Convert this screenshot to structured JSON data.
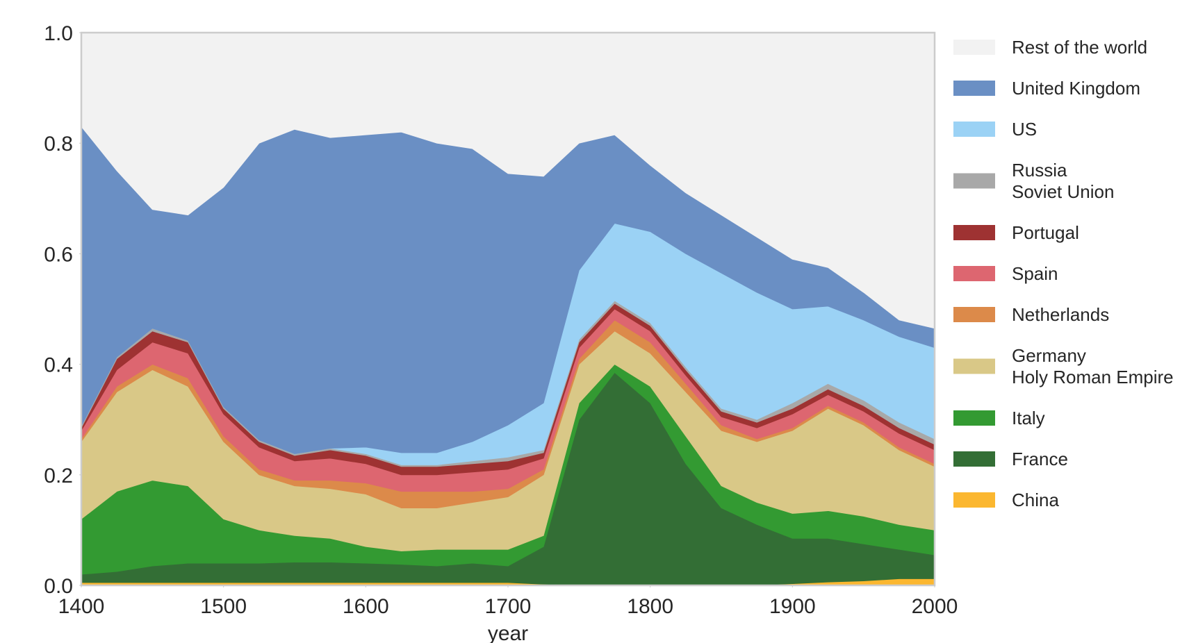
{
  "chart_data": {
    "type": "stackedarea",
    "x_label": "year",
    "x": [
      1400,
      1425,
      1450,
      1475,
      1500,
      1525,
      1550,
      1575,
      1600,
      1625,
      1650,
      1675,
      1700,
      1725,
      1750,
      1775,
      1800,
      1825,
      1850,
      1875,
      1900,
      1925,
      1950,
      1975,
      2000
    ],
    "xlim": [
      1400,
      2000
    ],
    "xticks": [
      1400,
      1500,
      1600,
      1700,
      1800,
      1900,
      2000
    ],
    "ylim": [
      0,
      1
    ],
    "yticks": [
      {
        "value": 0,
        "label": "0.0"
      },
      0.2,
      0.4,
      0.6,
      0.8,
      {
        "value": 1,
        "label": "1.0"
      }
    ],
    "grid": false,
    "legend": "right",
    "series": [
      {
        "name": "China",
        "color": "#fbb730",
        "values": [
          0.005,
          0.005,
          0.005,
          0.005,
          0.005,
          0.005,
          0.005,
          0.005,
          0.005,
          0.005,
          0.005,
          0.005,
          0.005,
          0.002,
          0,
          0,
          0,
          0,
          0,
          0,
          0.003,
          0.006,
          0.008,
          0.012,
          0.012
        ]
      },
      {
        "name": "France",
        "color": "#336e35",
        "values": [
          0.015,
          0.02,
          0.03,
          0.035,
          0.035,
          0.035,
          0.037,
          0.037,
          0.035,
          0.033,
          0.03,
          0.035,
          0.03,
          0.068,
          0.3,
          0.385,
          0.33,
          0.22,
          0.14,
          0.11,
          0.082,
          0.079,
          0.067,
          0.053,
          0.043
        ]
      },
      {
        "name": "Italy",
        "color": "#339a32",
        "values": [
          0.1,
          0.145,
          0.155,
          0.14,
          0.08,
          0.06,
          0.048,
          0.043,
          0.03,
          0.024,
          0.03,
          0.025,
          0.03,
          0.02,
          0.03,
          0.015,
          0.03,
          0.05,
          0.04,
          0.04,
          0.045,
          0.05,
          0.05,
          0.045,
          0.045
        ]
      },
      {
        "name": "Germany\nHoly Roman Empire",
        "color": "#d9c887",
        "values": [
          0.14,
          0.18,
          0.2,
          0.18,
          0.14,
          0.1,
          0.09,
          0.09,
          0.095,
          0.078,
          0.075,
          0.085,
          0.095,
          0.11,
          0.07,
          0.06,
          0.06,
          0.08,
          0.1,
          0.11,
          0.15,
          0.185,
          0.165,
          0.135,
          0.115
        ]
      },
      {
        "name": "Netherlands",
        "color": "#dc8a4a",
        "values": [
          0.005,
          0.01,
          0.01,
          0.015,
          0.01,
          0.01,
          0.01,
          0.015,
          0.02,
          0.03,
          0.03,
          0.02,
          0.015,
          0.01,
          0.01,
          0.02,
          0.02,
          0.015,
          0.01,
          0.005,
          0.005,
          0.005,
          0.005,
          0.005,
          0.005
        ]
      },
      {
        "name": "Spain",
        "color": "#dd6670",
        "values": [
          0.015,
          0.03,
          0.04,
          0.045,
          0.04,
          0.04,
          0.035,
          0.04,
          0.035,
          0.03,
          0.03,
          0.035,
          0.035,
          0.02,
          0.02,
          0.02,
          0.02,
          0.015,
          0.015,
          0.02,
          0.025,
          0.02,
          0.02,
          0.025,
          0.025
        ]
      },
      {
        "name": "Portugal",
        "color": "#9e3232",
        "values": [
          0.005,
          0.02,
          0.02,
          0.02,
          0.01,
          0.01,
          0.01,
          0.015,
          0.015,
          0.015,
          0.015,
          0.015,
          0.015,
          0.01,
          0.01,
          0.01,
          0.01,
          0.01,
          0.01,
          0.01,
          0.01,
          0.01,
          0.01,
          0.01,
          0.01
        ]
      },
      {
        "name": "Russia\nSoviet Union",
        "color": "#a8a8a8",
        "values": [
          0.003,
          0.003,
          0.005,
          0.003,
          0.003,
          0.003,
          0.003,
          0.003,
          0.003,
          0.003,
          0.003,
          0.005,
          0.007,
          0.005,
          0.005,
          0.005,
          0.005,
          0.005,
          0.005,
          0.005,
          0.01,
          0.01,
          0.01,
          0.01,
          0.01
        ]
      },
      {
        "name": "US",
        "color": "#9bd2f5",
        "values": [
          0,
          0,
          0,
          0,
          0,
          0,
          0,
          0,
          0.012,
          0.022,
          0.022,
          0.035,
          0.058,
          0.085,
          0.125,
          0.14,
          0.165,
          0.205,
          0.245,
          0.23,
          0.17,
          0.14,
          0.145,
          0.155,
          0.165
        ]
      },
      {
        "name": "United Kingdom",
        "color": "#6a8fc4",
        "values": [
          0.542,
          0.337,
          0.215,
          0.227,
          0.397,
          0.537,
          0.587,
          0.562,
          0.565,
          0.58,
          0.56,
          0.53,
          0.455,
          0.41,
          0.23,
          0.16,
          0.12,
          0.11,
          0.105,
          0.1,
          0.09,
          0.07,
          0.05,
          0.03,
          0.035
        ]
      },
      {
        "name": "Rest of the world",
        "color": "#f2f2f2",
        "values": [
          0.17,
          0.25,
          0.32,
          0.33,
          0.28,
          0.2,
          0.175,
          0.19,
          0.185,
          0.18,
          0.2,
          0.21,
          0.255,
          0.26,
          0.2,
          0.185,
          0.24,
          0.29,
          0.33,
          0.37,
          0.41,
          0.425,
          0.47,
          0.52,
          0.535
        ]
      }
    ]
  }
}
